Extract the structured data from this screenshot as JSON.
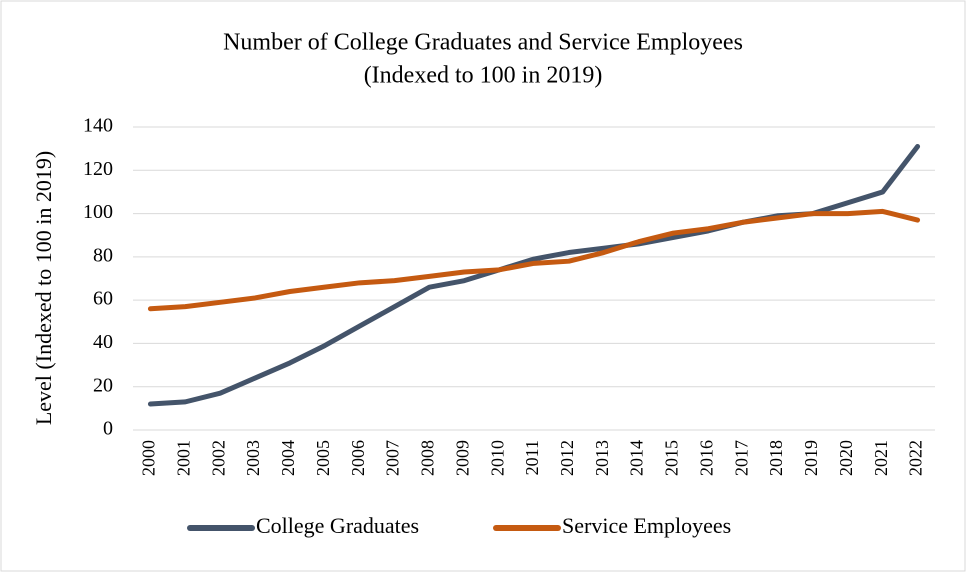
{
  "chart_data": {
    "type": "line",
    "title": "Number of College Graduates and Service Employees",
    "subtitle": "(Indexed to 100 in 2019)",
    "y_label": "Level (Indexed to 100 in 2019)",
    "categories": [
      "2000",
      "2001",
      "2002",
      "2003",
      "2004",
      "2005",
      "2006",
      "2007",
      "2008",
      "2009",
      "2010",
      "2011",
      "2012",
      "2013",
      "2014",
      "2015",
      "2016",
      "2017",
      "2018",
      "2019",
      "2020",
      "2021",
      "2022"
    ],
    "series": [
      {
        "name": "College Graduates",
        "color": "#44546a",
        "values": [
          12,
          13,
          17,
          24,
          31,
          39,
          48,
          57,
          66,
          69,
          74,
          79,
          82,
          84,
          86,
          89,
          92,
          96,
          99,
          100,
          105,
          110,
          131
        ]
      },
      {
        "name": "Service Employees",
        "color": "#c55a11",
        "values": [
          56,
          57,
          59,
          61,
          64,
          66,
          68,
          69,
          71,
          73,
          74,
          77,
          78,
          82,
          87,
          91,
          93,
          96,
          98,
          100,
          100,
          101,
          97
        ]
      }
    ],
    "ylim": [
      0,
      140
    ],
    "yticks": [
      0,
      20,
      40,
      60,
      80,
      100,
      120,
      140
    ],
    "grid": true,
    "legend": "bottom"
  }
}
